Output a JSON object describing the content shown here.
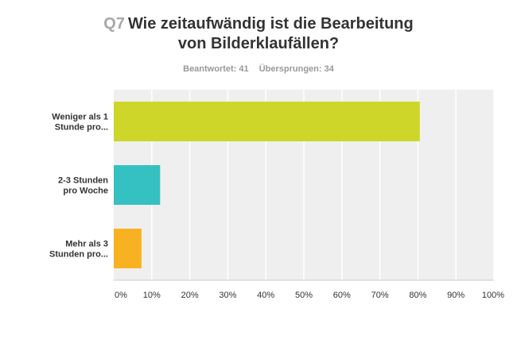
{
  "question": {
    "number": "Q7",
    "title_line1": "Wie zeitaufwändig ist die Bearbeitung",
    "title_line2": "von Bilderklaufällen?"
  },
  "stats": {
    "answered": "Beantwortet: 41",
    "skipped": "Übersprungen: 34"
  },
  "colors": {
    "plot_background": "#efefef",
    "gridline": "#ffffff",
    "axis": "#cccccc"
  },
  "chart_data": {
    "type": "bar",
    "orientation": "horizontal",
    "title": "",
    "xlabel": "",
    "ylabel": "",
    "categories": [
      [
        "Weniger als 1",
        "Stunde pro..."
      ],
      [
        "2-3 Stunden",
        "pro Woche"
      ],
      [
        "Mehr als 3",
        "Stunden pro..."
      ]
    ],
    "values": [
      80.5,
      12.2,
      7.3
    ],
    "colors": [
      "#cdd629",
      "#35c1c1",
      "#f8b221"
    ],
    "xlim": [
      0,
      100
    ],
    "ticks": [
      "0%",
      "10%",
      "20%",
      "30%",
      "40%",
      "50%",
      "60%",
      "70%",
      "80%",
      "90%",
      "100%"
    ],
    "grid": true,
    "legend": "none"
  }
}
